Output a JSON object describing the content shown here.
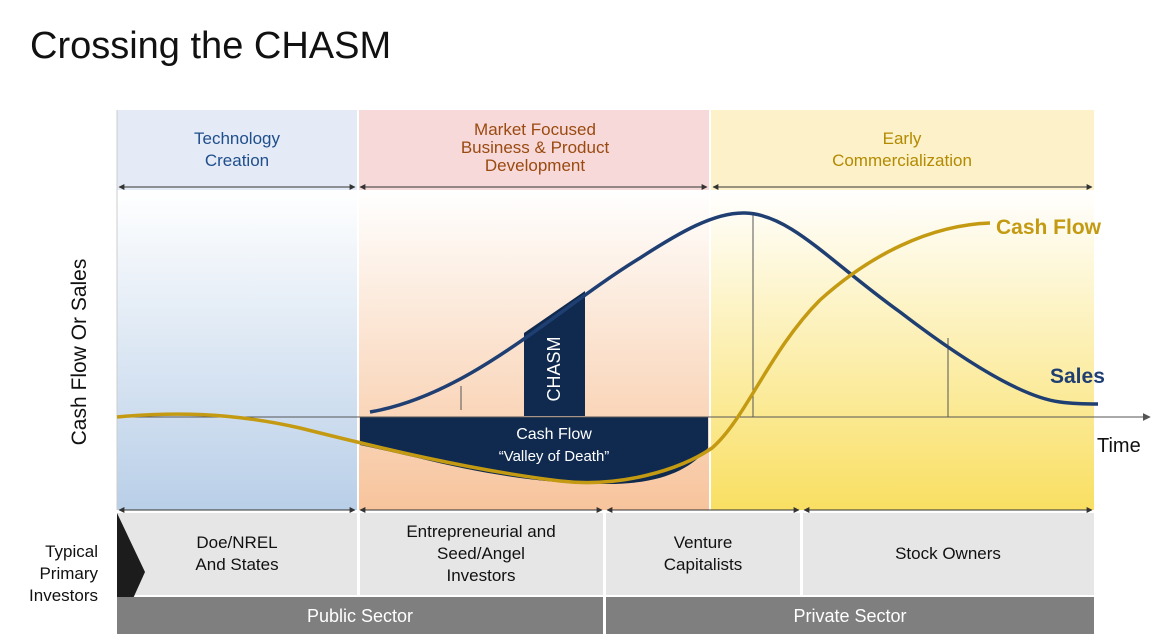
{
  "title": "Crossing the CHASM",
  "stages": [
    {
      "lines": [
        "Technology",
        "Creation"
      ],
      "color": "#1f4e8c"
    },
    {
      "lines": [
        "Market Focused",
        "Business & Product",
        "Development"
      ],
      "color": "#9a4a10"
    },
    {
      "lines": [
        "Early",
        "Commercialization"
      ],
      "color": "#b38a00"
    }
  ],
  "y_axis_label": "Cash Flow Or Sales",
  "x_axis_label": "Time",
  "curves": {
    "sales": {
      "label": "Sales",
      "color": "#1f3f73"
    },
    "cash_flow": {
      "label": "Cash Flow",
      "color": "#c49a12"
    }
  },
  "chasm_label": "CHASM",
  "valley": {
    "line1": "Cash Flow",
    "line2": "“Valley of Death”"
  },
  "investors": {
    "row_label": [
      "Typical",
      "Primary",
      "Investors"
    ],
    "groups": [
      {
        "lines": [
          "Doe/NREL",
          "And States"
        ]
      },
      {
        "lines": [
          "Entrepreneurial and",
          "Seed/Angel",
          "Investors"
        ]
      },
      {
        "lines": [
          "Venture",
          "Capitalists"
        ]
      },
      {
        "lines": [
          "Stock Owners"
        ]
      }
    ]
  },
  "sectors": [
    "Public Sector",
    "Private Sector"
  ]
}
